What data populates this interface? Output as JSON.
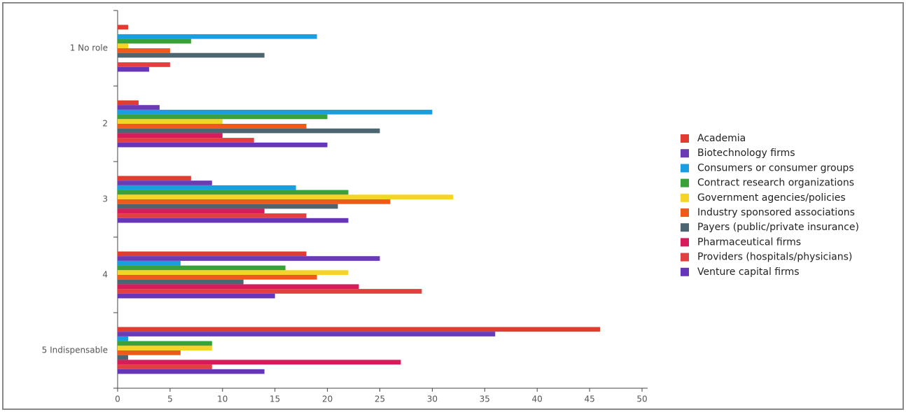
{
  "chart_data": {
    "type": "hbar",
    "categories": [
      "1 No role",
      "2",
      "3",
      "4",
      "5 Indispensable"
    ],
    "series": [
      {
        "name": "Academia",
        "color": "#e03c31",
        "values": [
          1,
          2,
          7,
          18,
          46
        ]
      },
      {
        "name": "Biotechnology firms",
        "color": "#6a3bb5",
        "values": [
          0,
          4,
          9,
          25,
          36
        ]
      },
      {
        "name": "Consumers or consumer groups",
        "color": "#1a9ee0",
        "values": [
          19,
          30,
          17,
          6,
          1
        ]
      },
      {
        "name": "Contract research organizations",
        "color": "#3aa13a",
        "values": [
          7,
          20,
          22,
          16,
          9
        ]
      },
      {
        "name": "Government agencies/policies",
        "color": "#f5d327",
        "values": [
          1,
          10,
          32,
          22,
          9
        ]
      },
      {
        "name": "Industry sponsored associations",
        "color": "#ef5a1a",
        "values": [
          5,
          18,
          26,
          19,
          6
        ]
      },
      {
        "name": "Payers (public/private insurance)",
        "color": "#4d6570",
        "values": [
          14,
          25,
          21,
          12,
          1
        ]
      },
      {
        "name": "Pharmaceutical firms",
        "color": "#d81b5a",
        "values": [
          0,
          10,
          14,
          23,
          27
        ]
      },
      {
        "name": "Providers (hospitals/physicians)",
        "color": "#e24040",
        "values": [
          5,
          13,
          18,
          29,
          9
        ]
      },
      {
        "name": "Venture capital firms",
        "color": "#6536b8",
        "values": [
          3,
          20,
          22,
          15,
          14
        ]
      }
    ],
    "xlim": [
      0,
      50
    ],
    "xticks": [
      0,
      5,
      10,
      15,
      20,
      25,
      30,
      35,
      40,
      45,
      50
    ]
  }
}
